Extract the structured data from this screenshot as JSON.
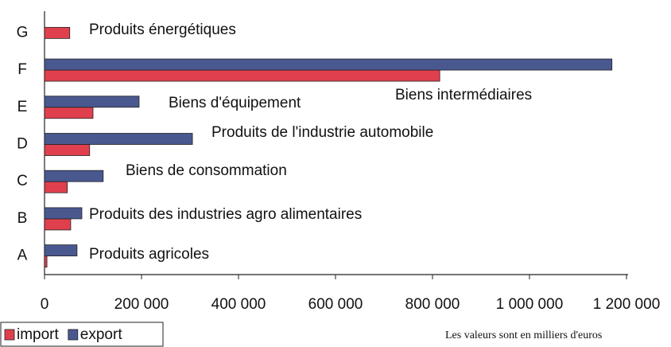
{
  "chart_data": {
    "type": "barh",
    "categories": [
      "A",
      "B",
      "C",
      "D",
      "E",
      "F",
      "G"
    ],
    "series": [
      {
        "name": "import",
        "color": "#e0404e",
        "values": [
          5000,
          54000,
          47000,
          93000,
          100000,
          815000,
          52000
        ]
      },
      {
        "name": "export",
        "color": "#4a5890",
        "values": [
          67000,
          77000,
          121000,
          305000,
          195000,
          1170000,
          null
        ]
      }
    ],
    "annotations": [
      "Produits agricoles",
      "Produits des industries agro alimentaires",
      "Biens de consommation",
      "Produits de l'industrie automobile",
      "Biens d'équipement",
      "Biens intermédiaires",
      "Produits énergétiques"
    ],
    "xlim": [
      0,
      1200000
    ],
    "xticks": [
      0,
      {
        "value": 200000,
        "label": "200 000"
      },
      {
        "value": 400000,
        "label": "400 000"
      },
      {
        "value": 600000,
        "label": "600 000"
      },
      {
        "value": 800000,
        "label": "800 000"
      },
      {
        "value": 1000000,
        "label": "1 000 000"
      },
      {
        "value": 1200000,
        "label": "1 200 000"
      }
    ],
    "legend": "bottom-left",
    "note": "Les valeurs sont en milliers d'euros"
  }
}
